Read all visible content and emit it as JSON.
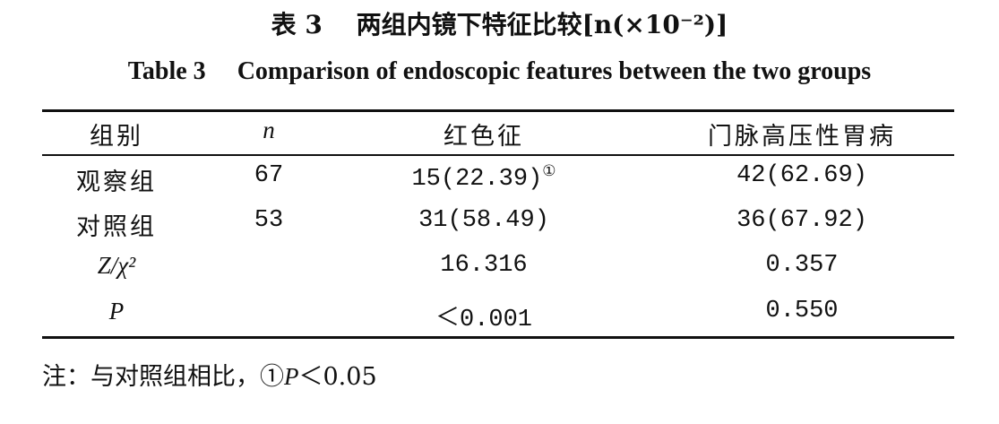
{
  "header": {
    "title_label": "表 3",
    "title_text": "两组内镜下特征比较",
    "title_unit": "[n(×10⁻²)]",
    "title_en_label": "Table 3",
    "title_en_text": "Comparison of endoscopic features between the two groups"
  },
  "table": {
    "columns": [
      "组别",
      "n",
      "红色征",
      "门脉高压性胃病"
    ],
    "rows": [
      [
        "观察组",
        67,
        "15(22.39)",
        "42(62.69)"
      ],
      [
        "对照组",
        53,
        "31(58.49)",
        "36(67.92)"
      ]
    ],
    "footnote_mark": "①",
    "stats": [
      {
        "label": "Z/χ²",
        "values": [
          "16.316",
          "0.357"
        ]
      },
      {
        "label": "P",
        "values": [
          "＜0.001",
          "0.550"
        ]
      }
    ]
  },
  "note": {
    "prefix": "注：与对照组相比，①",
    "p": "P",
    "rest": "＜0.05"
  }
}
